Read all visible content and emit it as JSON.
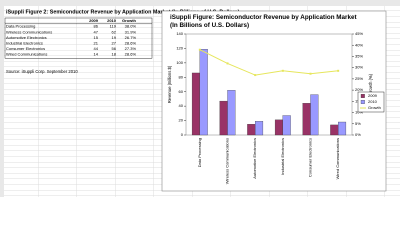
{
  "sheet": {
    "title": "iSuppli Figure 2: Semiconductor Revenue by Application Market (In Billions of U.S. Dollars)",
    "source": "Source: iSuppli Corp. September 2010"
  },
  "chart_data": {
    "type": "bar",
    "title": "iSuppli Figure: Semiconductor Revenue by Application Market (In Billions of U.S. Dollars)",
    "y_label": "Revenue (Billions $)",
    "y2_label": "Growth (%)",
    "categories": [
      "Data Processing",
      "Wireless Communications",
      "Automotive Electronics",
      "Industrial Electronics",
      "Consumer Electronics",
      "Wired Communications"
    ],
    "series": [
      {
        "name": "2009",
        "color": "#993366",
        "values": [
          86,
          47,
          15,
          21,
          44,
          14
        ]
      },
      {
        "name": "2010",
        "color": "#9999ff",
        "values": [
          119,
          62,
          19,
          27,
          56,
          18
        ]
      },
      {
        "name": "Growth",
        "color": "#e6e65c",
        "axis": "y2",
        "type": "line",
        "values": [
          38.0,
          31.9,
          26.7,
          28.6,
          27.3,
          28.6
        ],
        "value_labels": [
          "38.0%",
          "31.9%",
          "26.7%",
          "28.6%",
          "27.3%",
          "28.6%"
        ]
      }
    ],
    "ylim": [
      0,
      140
    ],
    "yticks": [
      0,
      20,
      40,
      60,
      80,
      100,
      120,
      140
    ],
    "y2lim": [
      0,
      45
    ],
    "y2ticks": [
      {
        "value": 0,
        "label": "0%"
      },
      {
        "value": 5,
        "label": "5%"
      },
      {
        "value": 10,
        "label": "10%"
      },
      {
        "value": 15,
        "label": "15%"
      },
      {
        "value": 20,
        "label": "20%"
      },
      {
        "value": 25,
        "label": "25%"
      },
      {
        "value": 30,
        "label": "30%"
      },
      {
        "value": 35,
        "label": "35%"
      },
      {
        "value": 40,
        "label": "40%"
      },
      {
        "value": 45,
        "label": "45%"
      }
    ],
    "legend": "right"
  }
}
